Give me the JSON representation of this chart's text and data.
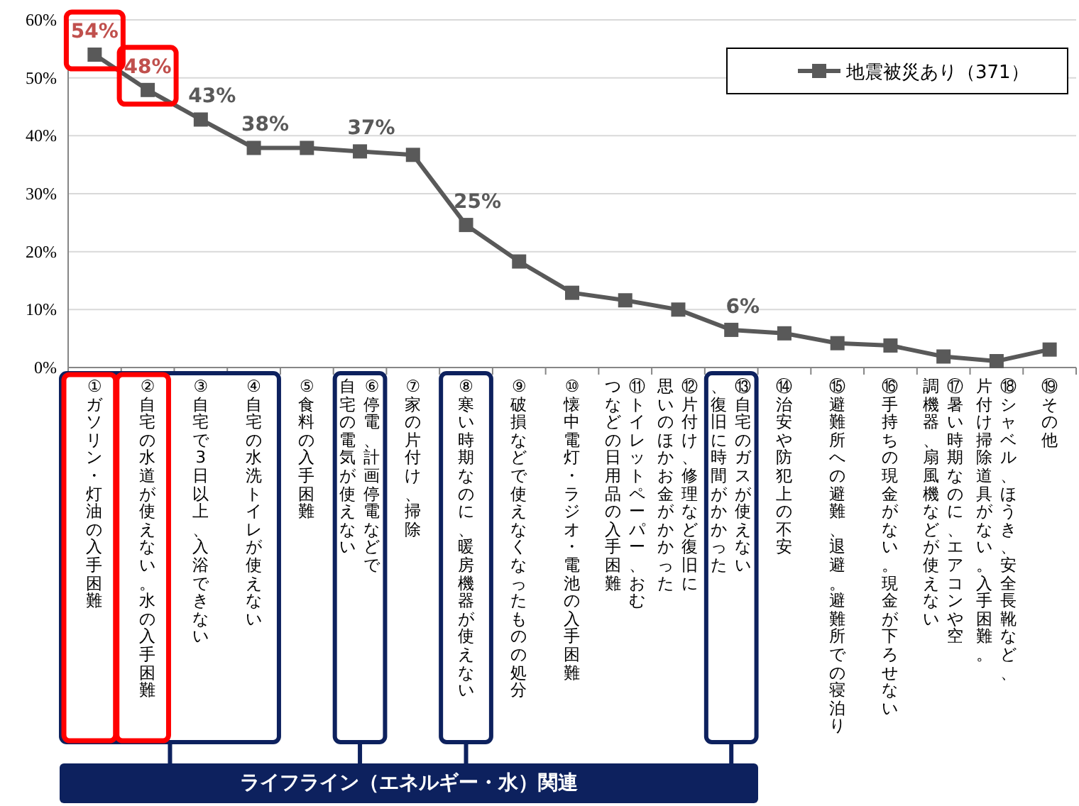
{
  "chart_data": {
    "type": "line",
    "categories": [
      "①ガソリン・灯油の入手困難",
      "②自宅の水道が使えない。水の入手困難",
      "③自宅で3日以上、入浴できない",
      "④自宅の水洗トイレが使えない",
      "⑤食料の入手困難",
      "⑥停電、計画停電などで自宅の電気が使えない",
      "⑦家の片付け、掃除",
      "⑧寒い時期なのに、暖房機器が使えない",
      "⑨破損などで使えなくなったものの処分",
      "⑩懐中電灯・ラジオ・電池の入手困難",
      "⑪トイレットペーパー、おむつなどの日用品の入手困難",
      "⑫片付け、修理など復旧に思いのほかお金がかかった",
      "⑬自宅のガスが使えない、復旧に時間がかかった",
      "⑭治安や防犯上の不安",
      "⑮避難所への避難、退避。避難所での寝泊り",
      "⑯手持ちの現金がない。現金が下ろせない",
      "⑰暑い時期なのに、エアコンや空調機器、扇風機などが使えない",
      "⑱シャベル、ほうき、安全長靴など、片付け掃除道具がない。入手困難。",
      "⑲その他"
    ],
    "series": [
      {
        "name": "地震被災あり（371）",
        "color": "#595959",
        "values": [
          54.0,
          47.9,
          42.8,
          37.9,
          37.9,
          37.3,
          36.7,
          24.6,
          18.3,
          12.9,
          11.6,
          10.0,
          6.5,
          5.9,
          4.2,
          3.8,
          1.9,
          1.1,
          3.1
        ],
        "value_labels": [
          "54%",
          "48%",
          "43%",
          "38%",
          null,
          "37%",
          null,
          "25%",
          null,
          null,
          null,
          null,
          "6%",
          null,
          null,
          null,
          null,
          null,
          null
        ]
      }
    ],
    "ylim": [
      0,
      60
    ],
    "yticks": [
      {
        "value": 0,
        "label": "0%"
      },
      {
        "value": 10,
        "label": "10%"
      },
      {
        "value": 20,
        "label": "20%"
      },
      {
        "value": 30,
        "label": "30%"
      },
      {
        "value": 40,
        "label": "40%"
      },
      {
        "value": 50,
        "label": "50%"
      },
      {
        "value": 60,
        "label": "60%"
      }
    ],
    "grid": "y",
    "legend": "top right",
    "marker": "square",
    "line_style": "solid",
    "annotations": [
      "ライフライン（エネルギー・水）関連"
    ]
  }
}
